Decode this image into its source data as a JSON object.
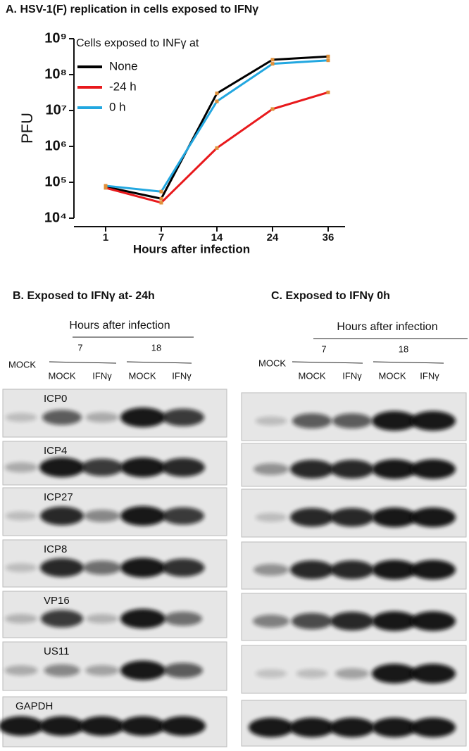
{
  "chart_data": {
    "type": "line",
    "title": "A. HSV-1(F) replication in cells exposed to IFNγ",
    "x_label": "Hours after infection",
    "y_label": "PFU",
    "categories": [
      "1",
      "7",
      "14",
      "24",
      "36"
    ],
    "log_scale": true,
    "ylim": [
      10000,
      1000000000
    ],
    "yticks": [
      {
        "value": 10000,
        "label": "10⁴"
      },
      {
        "value": 100000,
        "label": "10⁵"
      },
      {
        "value": 1000000,
        "label": "10⁶"
      },
      {
        "value": 10000000,
        "label": "10⁷"
      },
      {
        "value": 100000000,
        "label": "10⁸"
      },
      {
        "value": 1000000000,
        "label": "10⁹"
      }
    ],
    "legend_title": "Cells exposed to INFγ at",
    "legend": "upper left",
    "series": [
      {
        "name": "None",
        "color": "#000000",
        "values": [
          75000,
          35000,
          30000000,
          260000000,
          320000000
        ]
      },
      {
        "name": "-24 h",
        "color": "#e8191c",
        "values": [
          70000,
          27000,
          900000,
          11000000,
          32000000
        ]
      },
      {
        "name": "0 h",
        "color": "#22a7e0",
        "values": [
          80000,
          55000,
          18000000,
          200000000,
          250000000
        ]
      }
    ]
  },
  "panel_b": {
    "title": "B. Exposed to IFNγ  at-  24h",
    "header": "Hours after infection",
    "times": [
      "7",
      "18"
    ],
    "mock": "MOCK",
    "lanes": [
      "MOCK",
      "IFNγ",
      "MOCK",
      "IFNγ"
    ],
    "proteins": [
      "ICP0",
      "ICP4",
      "ICP27",
      "ICP8",
      "VP16",
      "US11",
      "GAPDH"
    ]
  },
  "panel_c": {
    "title": "C. Exposed to IFNγ 0h",
    "header": "Hours after infection",
    "times": [
      "7",
      "18"
    ],
    "mock": "MOCK",
    "lanes": [
      "MOCK",
      "IFNγ",
      "MOCK",
      "IFNγ"
    ]
  }
}
